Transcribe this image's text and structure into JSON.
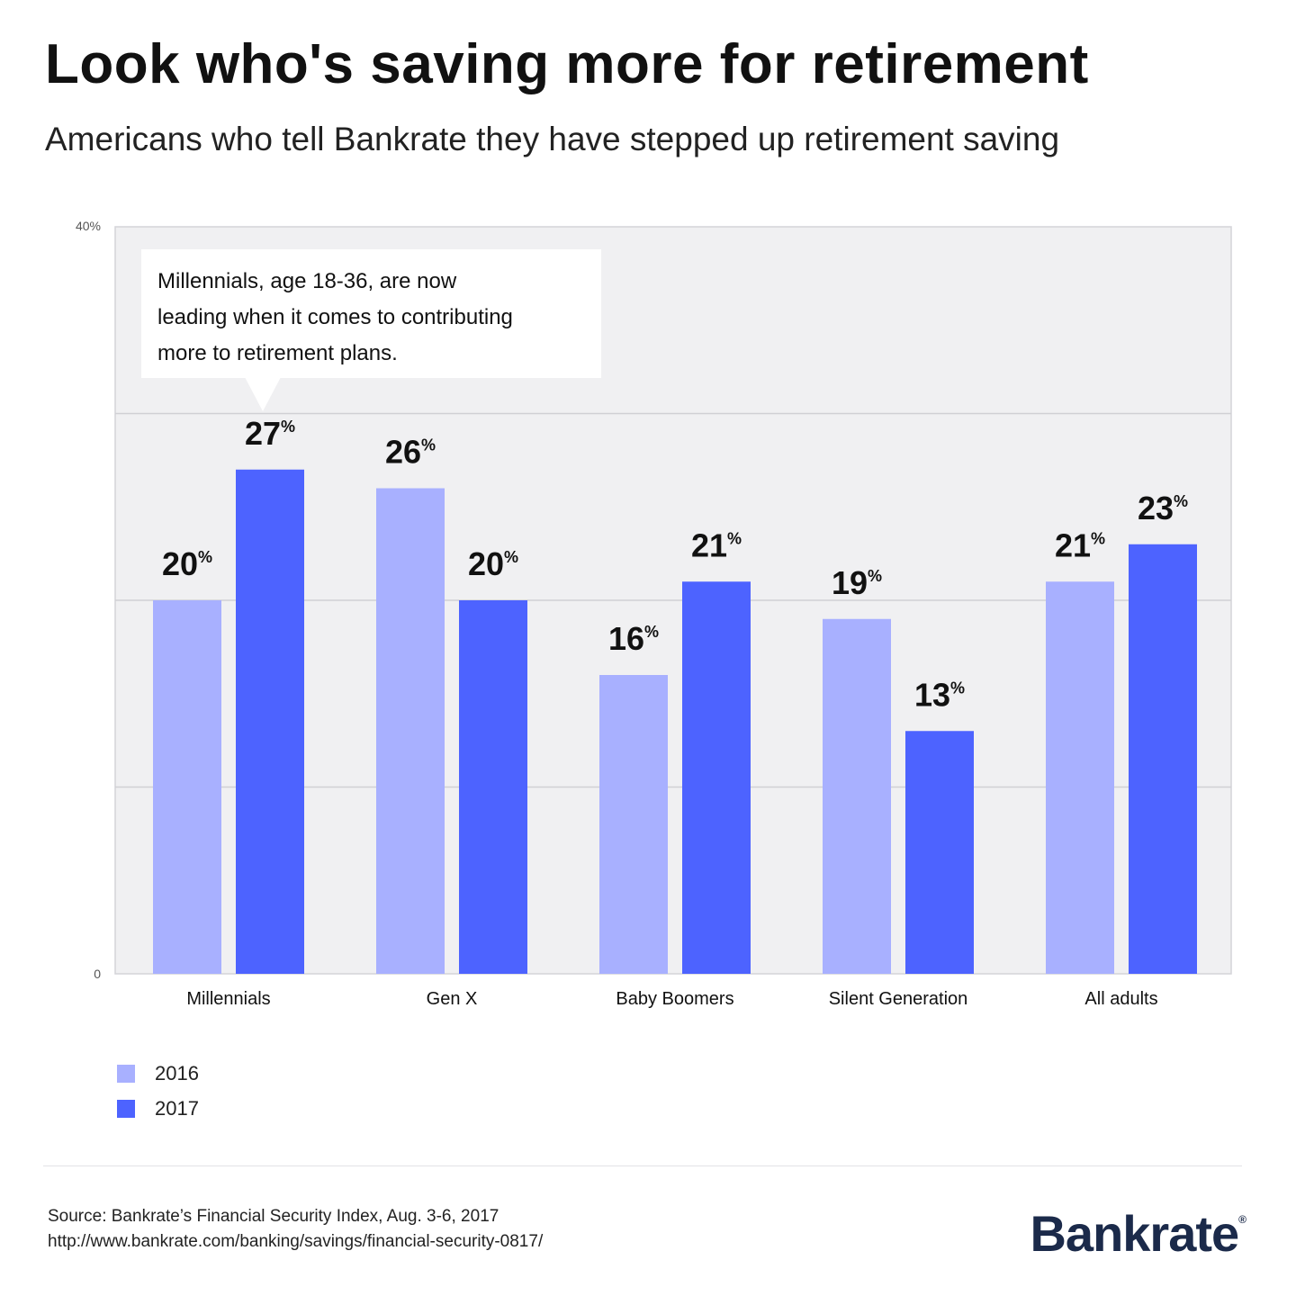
{
  "title": "Look who's saving more for retirement",
  "subtitle": "Americans who tell Bankrate they have stepped up retirement saving",
  "callout": {
    "lines": [
      "Millennials, age 18-36, are now",
      "leading when it comes to contributing",
      "more to retirement plans."
    ]
  },
  "legend": [
    {
      "label": "2016",
      "color": "#a8b0ff"
    },
    {
      "label": "2017",
      "color": "#4d63ff"
    }
  ],
  "source": {
    "line1": "Source: Bankrate’s Financial Security Index, Aug. 3-6, 2017",
    "line2": "http://www.bankrate.com/banking/savings/financial-security-0817/"
  },
  "logo": {
    "text": "Bankrate",
    "mark": "®"
  },
  "chart_data": {
    "type": "bar",
    "categories": [
      "Millennials",
      "Gen X",
      "Baby Boomers",
      "Silent Generation",
      "All adults"
    ],
    "series": [
      {
        "name": "2016",
        "values": [
          20,
          26,
          16,
          19,
          21
        ],
        "color": "#a8b0ff"
      },
      {
        "name": "2017",
        "values": [
          27,
          20,
          21,
          13,
          23
        ],
        "color": "#4d63ff"
      }
    ],
    "value_suffix": "%",
    "ylim": [
      0,
      40
    ],
    "y_tick_labels": {
      "0": "0",
      "40": "40%"
    },
    "gridlines": [
      10,
      20,
      30
    ],
    "grid": true,
    "plot_background": "#f0f0f2",
    "legend_position": "bottom-left"
  }
}
